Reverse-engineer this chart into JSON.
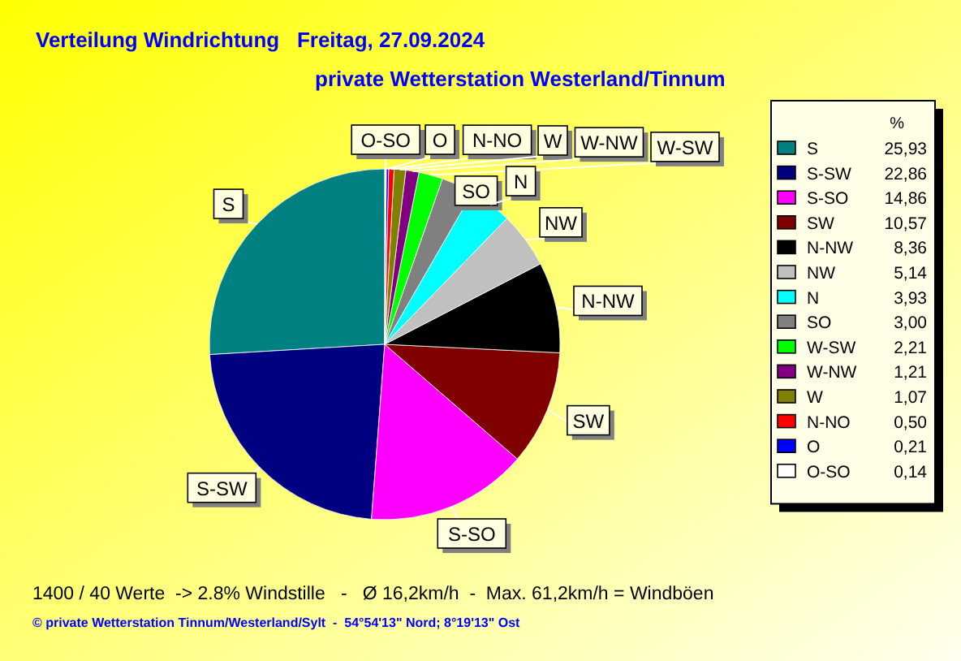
{
  "chart_data": {
    "type": "pie",
    "title": "Verteilung Windrichtung   Freitag, 27.09.2024",
    "subtitle": "private Wetterstation Westerland/Tinnum",
    "legend_title": "%",
    "legend": "right",
    "categories": [
      "S",
      "S-SW",
      "S-SO",
      "SW",
      "N-NW",
      "NW",
      "N",
      "SO",
      "W-SW",
      "W-NW",
      "W",
      "N-NO",
      "O",
      "O-SO"
    ],
    "values": [
      25.93,
      22.86,
      14.86,
      10.57,
      8.36,
      5.14,
      3.93,
      3.0,
      2.21,
      1.21,
      1.07,
      0.5,
      0.21,
      0.14
    ],
    "value_labels": [
      "25,93",
      "22,86",
      "14,86",
      "10,57",
      "8,36",
      "5,14",
      "3,93",
      "3,00",
      "2,21",
      "1,21",
      "1,07",
      "0,50",
      "0,21",
      "0,14"
    ],
    "colors": [
      "#008080",
      "#000080",
      "#ff00ff",
      "#800000",
      "#000000",
      "#c0c0c0",
      "#00ffff",
      "#808080",
      "#00ff00",
      "#800080",
      "#808000",
      "#ff0000",
      "#0000ff",
      "#ffffff"
    ],
    "annotations": [
      "1400 / 40 Werte  -> 2.8% Windstille   -   Ø 16,2km/h  -  Max. 61,2km/h = Windböen",
      "© private Wetterstation Tinnum/Westerland/Sylt  -  54°54'13\" Nord; 8°19'13\" Ost"
    ]
  }
}
